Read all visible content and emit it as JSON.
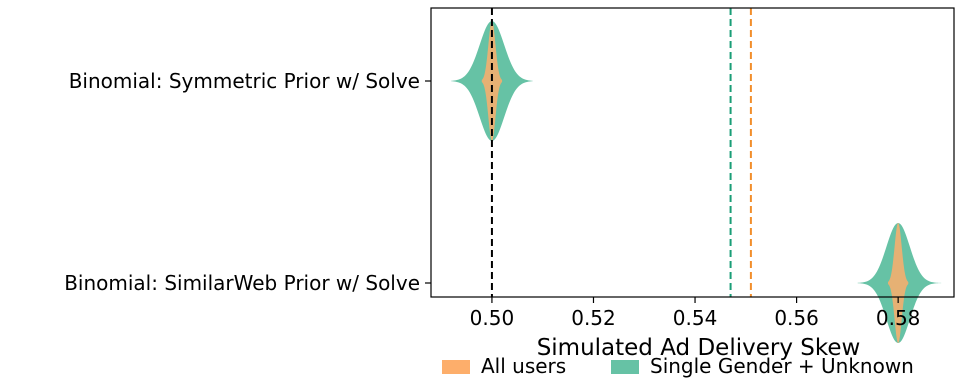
{
  "chart_data": {
    "type": "violin",
    "title": "",
    "xlabel": "Simulated Ad Delivery Skew",
    "ylabel": "",
    "xlim": [
      0.488,
      0.591
    ],
    "x_ticks": [
      0.5,
      0.52,
      0.54,
      0.56,
      0.58
    ],
    "x_tick_labels": [
      "0.50",
      "0.52",
      "0.54",
      "0.56",
      "0.58"
    ],
    "categories": [
      "Binomial: Symmetric Prior w/ Solve",
      "Binomial: SimilarWeb Prior w/ Solve"
    ],
    "series": [
      {
        "name": "Single Gender + Unknown",
        "color": "#66c2a5",
        "distributions": [
          {
            "category": "Binomial: Symmetric Prior w/ Solve",
            "center": 0.5,
            "spread": 0.0024,
            "min": 0.492,
            "max": 0.508
          },
          {
            "category": "Binomial: SimilarWeb Prior w/ Solve",
            "center": 0.58,
            "spread": 0.0023,
            "min": 0.572,
            "max": 0.589
          }
        ]
      },
      {
        "name": "All users",
        "color": "#fdae6b",
        "distributions": [
          {
            "category": "Binomial: Symmetric Prior w/ Solve",
            "center": 0.5,
            "spread": 0.0007,
            "min": 0.498,
            "max": 0.502
          },
          {
            "category": "Binomial: SimilarWeb Prior w/ Solve",
            "center": 0.58,
            "spread": 0.0007,
            "min": 0.578,
            "max": 0.582
          }
        ]
      }
    ],
    "reference_lines": [
      {
        "x": 0.5,
        "color": "#000000",
        "style": "dashed"
      },
      {
        "x": 0.547,
        "color": "#1a9e77",
        "style": "dashed"
      },
      {
        "x": 0.551,
        "color": "#f28e2b",
        "style": "dashed"
      }
    ],
    "legend": {
      "placement": "bottom",
      "entries": [
        {
          "label": "All users",
          "color": "#fdae6b"
        },
        {
          "label": "Single Gender + Unknown",
          "color": "#66c2a5"
        }
      ]
    },
    "grid": false
  }
}
